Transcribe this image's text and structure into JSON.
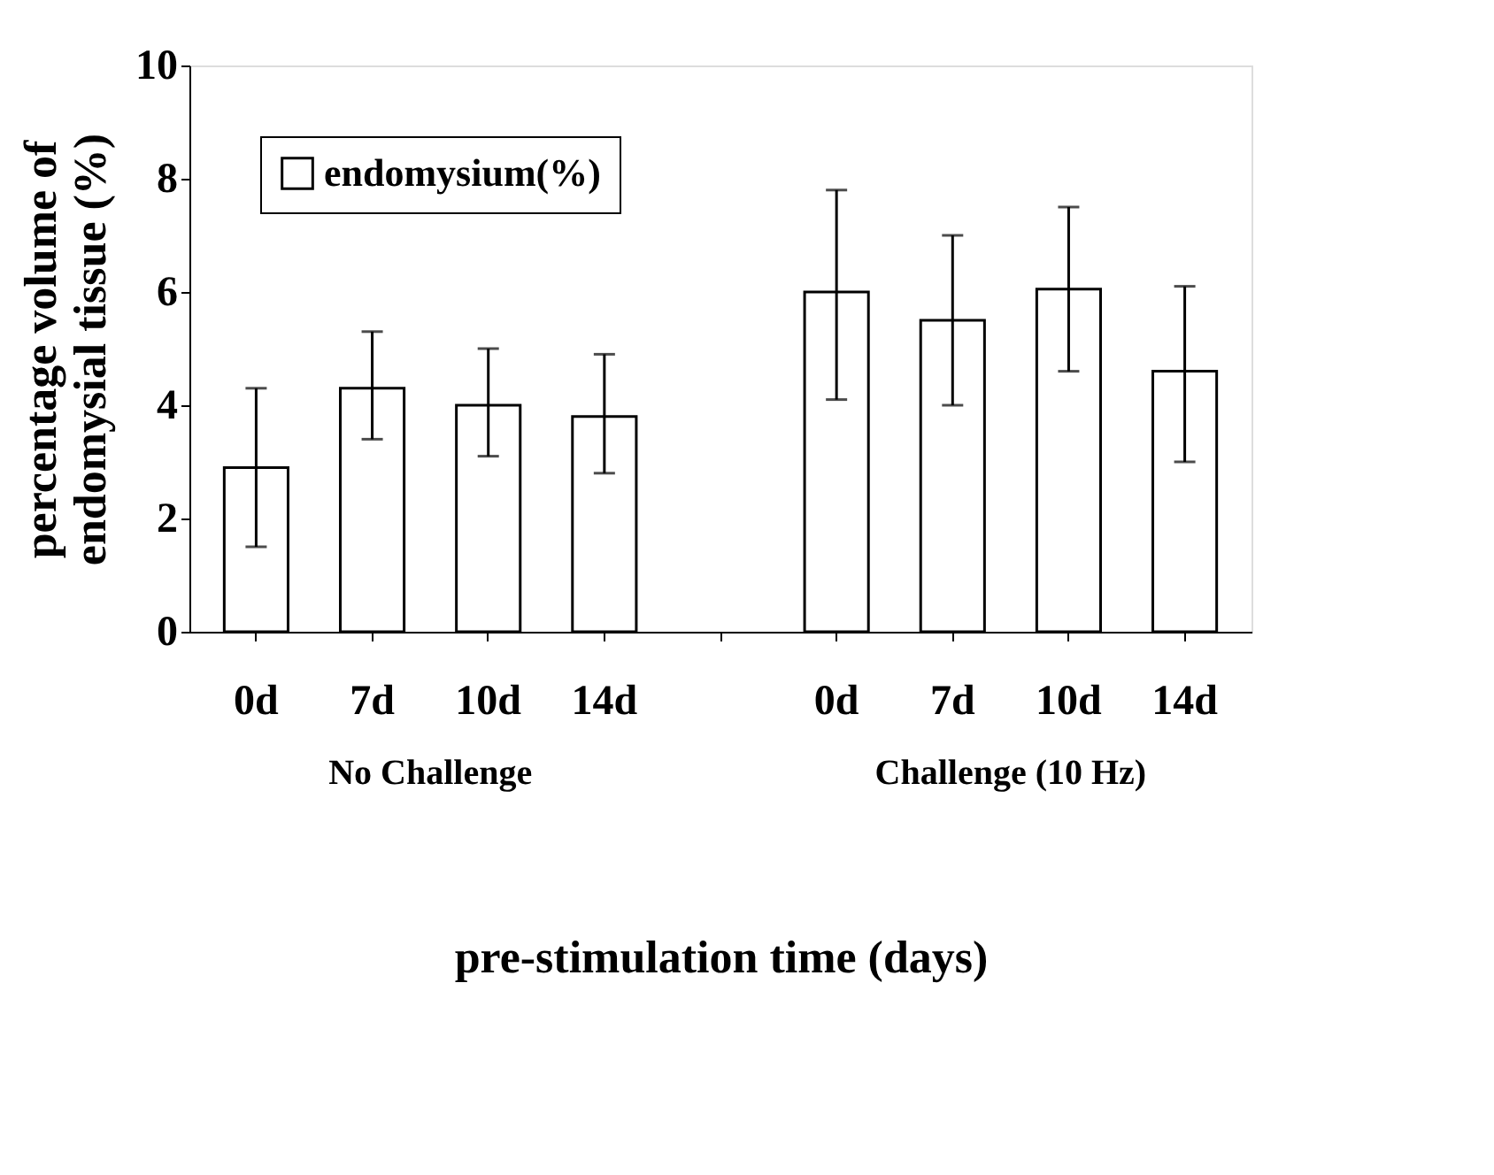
{
  "chart_data": {
    "type": "bar",
    "categories": [
      "0d",
      "7d",
      "10d",
      "14d",
      null,
      "0d",
      "7d",
      "10d",
      "14d"
    ],
    "series": [
      {
        "name": "endomysium(%)",
        "color": "#ffffff",
        "values": [
          2.9,
          4.3,
          4.0,
          3.8,
          null,
          6.0,
          5.5,
          6.05,
          4.6
        ],
        "errors": [
          [
            1.5,
            4.3
          ],
          [
            3.4,
            5.3
          ],
          [
            3.1,
            5.0
          ],
          [
            2.8,
            4.9
          ],
          null,
          [
            4.1,
            7.8
          ],
          [
            4.0,
            7.0
          ],
          [
            4.6,
            7.5
          ],
          [
            3.0,
            6.1
          ]
        ]
      }
    ],
    "ylabel": "percentage volume of\nendomysial tissue (%)",
    "xlabel": "pre-stimulation time (days)",
    "annotations": [
      "No Challenge",
      "Challenge (10 Hz)"
    ],
    "ylim": [
      0,
      10
    ],
    "yticks": [
      0,
      2,
      4,
      6,
      8,
      10
    ],
    "grid": false,
    "legend": "top left"
  }
}
